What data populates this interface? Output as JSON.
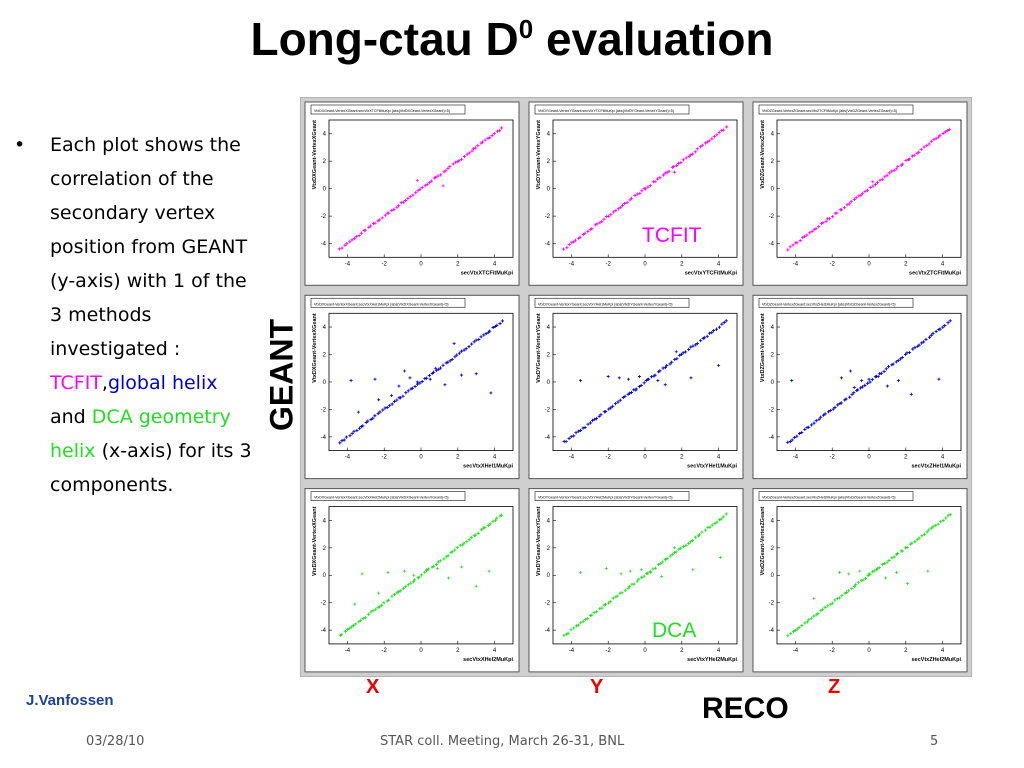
{
  "title": {
    "main": "Long-ctau D",
    "sup": "0",
    "rest": " evaluation"
  },
  "bullet": {
    "intro": "Each plot shows the correlation of the secondary vertex position from GEANT (y-axis) with 1 of the 3 methods investigated : ",
    "m1": "TCFIT",
    "comma": ",",
    "m2": "global helix",
    "and": " and ",
    "m3": "DCA geometry helix",
    "tail": " (x-axis) for its 3 components."
  },
  "labels": {
    "geant": "GEANT",
    "reco": "RECO",
    "x": "X",
    "y": "Y",
    "z": "Z",
    "tcfit_tag": "TCFIT",
    "dca_tag": "DCA"
  },
  "footer": {
    "author": "J.Vanfossen",
    "date": "03/28/10",
    "meeting": "STAR coll. Meeting, March 26-31, BNL",
    "page": "5"
  },
  "colors": {
    "tcfit": "#ff00ff",
    "global": "#0000cc",
    "dca": "#22dd22",
    "reco_axis": "#ee0000"
  },
  "chart_data": [
    {
      "type": "scatter",
      "title": "VtxDXGeant-VertexXGeant:secVtxXTCFitMuKpi {abs(VtxDXGeant-VertexXGeant)<5}",
      "xlabel": "secVtxXTCFitMuKpi",
      "ylabel": "VtxDXGeant-VertexXGeant",
      "xlim": [
        -5,
        5
      ],
      "ylim": [
        -5,
        5
      ],
      "xticks": [
        -4,
        -2,
        0,
        2,
        4
      ],
      "yticks": [
        -4,
        -2,
        0,
        2,
        4
      ],
      "color": "#ff00ff",
      "outliers": [
        [
          -0.2,
          0.6
        ],
        [
          1.2,
          0.2
        ]
      ]
    },
    {
      "type": "scatter",
      "title": "VtxDYGeant-VertexYGeant:secVtxYTCFitMuKpi {abs(VtxDYGeant-VertexYGeant)<5}",
      "xlabel": "secVtxYTCFitMuKpi",
      "ylabel": "VtxDYGeant-VertexYGeant",
      "xlim": [
        -5,
        5
      ],
      "ylim": [
        -5,
        5
      ],
      "xticks": [
        -4,
        -2,
        0,
        2,
        4
      ],
      "yticks": [
        -4,
        -2,
        0,
        2,
        4
      ],
      "color": "#ff00ff",
      "outliers": [
        [
          1.6,
          1.2
        ]
      ]
    },
    {
      "type": "scatter",
      "title": "VtxDZGeant-VertexZGeant:secVtxZTCFitMuKpi {abs(VtxDZGeant-VertexZGeant)<5}",
      "xlabel": "secVtxZTCFitMuKpi",
      "ylabel": "VtxDZGeant-VertexZGeant",
      "xlim": [
        -5,
        5
      ],
      "ylim": [
        -5,
        5
      ],
      "xticks": [
        -4,
        -2,
        0,
        2,
        4
      ],
      "yticks": [
        -4,
        -2,
        0,
        2,
        4
      ],
      "color": "#ff00ff",
      "outliers": [
        [
          0.2,
          0.5
        ]
      ]
    },
    {
      "type": "scatter",
      "title": "VtxDXGeant-VertexXGeant:secVtxXHel1MuKpi {abs(VtxDXGeant-VertexXGeant)<5}",
      "xlabel": "secVtxXHel1MuKpi",
      "ylabel": "VtxDXGeant-VertexXGeant",
      "xlim": [
        -5,
        5
      ],
      "ylim": [
        -5,
        5
      ],
      "xticks": [
        -4,
        -2,
        0,
        2,
        4
      ],
      "yticks": [
        -4,
        -2,
        0,
        2,
        4
      ],
      "color": "#0000cc",
      "outliers": [
        [
          -3.8,
          0.1
        ],
        [
          -3.4,
          -2.2
        ],
        [
          -2.5,
          0.2
        ],
        [
          -2.3,
          -1.3
        ],
        [
          -1.6,
          -1.0
        ],
        [
          -1.2,
          -0.3
        ],
        [
          -0.6,
          0.3
        ],
        [
          -0.2,
          0.0
        ],
        [
          0.5,
          0.2
        ],
        [
          0.8,
          1.0
        ],
        [
          1.3,
          -0.2
        ],
        [
          2.2,
          0.5
        ],
        [
          3.0,
          0.6
        ],
        [
          3.8,
          -0.8
        ],
        [
          1.8,
          2.8
        ],
        [
          -0.9,
          0.8
        ]
      ]
    },
    {
      "type": "scatter",
      "title": "VtxDYGeant-VertexYGeant:secVtxYHel1MuKpi {abs(VtxDYGeant-VertexYGeant)<5}",
      "xlabel": "secVtxYHel1MuKpi",
      "ylabel": "VtxDYGeant-VertexYGeant",
      "xlim": [
        -5,
        5
      ],
      "ylim": [
        -5,
        5
      ],
      "xticks": [
        -4,
        -2,
        0,
        2,
        4
      ],
      "yticks": [
        -4,
        -2,
        0,
        2,
        4
      ],
      "color": "#0000cc",
      "outliers": [
        [
          -3.5,
          0.1
        ],
        [
          -2.0,
          0.4
        ],
        [
          -1.4,
          0.3
        ],
        [
          -0.9,
          0.2
        ],
        [
          -0.3,
          0.4
        ],
        [
          0.2,
          0.2
        ],
        [
          0.7,
          0.1
        ],
        [
          1.1,
          -0.2
        ],
        [
          1.7,
          2.2
        ],
        [
          2.5,
          0.3
        ],
        [
          4.0,
          1.2
        ],
        [
          -0.5,
          -0.6
        ]
      ]
    },
    {
      "type": "scatter",
      "title": "VtxDZGeant-VertexZGeant:secVtxZHel1MuKpi {abs(VtxDZGeant-VertexZGeant)<5}",
      "xlabel": "secVtxZHel1MuKpi",
      "ylabel": "VtxDZGeant-VertexZGeant",
      "xlim": [
        -5,
        5
      ],
      "ylim": [
        -5,
        5
      ],
      "xticks": [
        -4,
        -2,
        0,
        2,
        4
      ],
      "yticks": [
        -4,
        -2,
        0,
        2,
        4
      ],
      "color": "#0000cc",
      "outliers": [
        [
          -4.2,
          0.1
        ],
        [
          -1.5,
          0.3
        ],
        [
          -1.0,
          0.8
        ],
        [
          -0.4,
          0.1
        ],
        [
          0.0,
          0.2
        ],
        [
          0.5,
          0.4
        ],
        [
          1.0,
          -0.3
        ],
        [
          1.6,
          0.1
        ],
        [
          2.3,
          -0.9
        ],
        [
          3.8,
          0.2
        ],
        [
          -0.8,
          -0.4
        ]
      ]
    },
    {
      "type": "scatter",
      "title": "VtxDXGeant-VertexXGeant:secVtxXHel2MuKpi {abs(VtxDXGeant-VertexXGeant)<5}",
      "xlabel": "secVtxXHel2MuKpi",
      "ylabel": "VtxDXGeant-VertexXGeant",
      "xlim": [
        -5,
        5
      ],
      "ylim": [
        -5,
        5
      ],
      "xticks": [
        -4,
        -2,
        0,
        2,
        4
      ],
      "yticks": [
        -4,
        -2,
        0,
        2,
        4
      ],
      "color": "#22dd22",
      "outliers": [
        [
          -3.6,
          -2.1
        ],
        [
          -3.2,
          0.1
        ],
        [
          -2.3,
          -1.3
        ],
        [
          -1.8,
          0.2
        ],
        [
          -0.9,
          0.3
        ],
        [
          -0.4,
          0.0
        ],
        [
          0.3,
          0.4
        ],
        [
          0.9,
          0.5
        ],
        [
          1.5,
          -0.2
        ],
        [
          2.2,
          0.6
        ],
        [
          3.0,
          -0.8
        ],
        [
          3.7,
          0.3
        ]
      ]
    },
    {
      "type": "scatter",
      "title": "VtxDYGeant-VertexYGeant:secVtxYHel2MuKpi {abs(VtxDYGeant-VertexYGeant)<5}",
      "xlabel": "secVtxYHel2MuKpi",
      "ylabel": "VtxDYGeant-VertexYGeant",
      "xlim": [
        -5,
        5
      ],
      "ylim": [
        -5,
        5
      ],
      "xticks": [
        -4,
        -2,
        0,
        2,
        4
      ],
      "yticks": [
        -4,
        -2,
        0,
        2,
        4
      ],
      "color": "#22dd22",
      "outliers": [
        [
          -3.5,
          0.2
        ],
        [
          -2.1,
          0.5
        ],
        [
          -1.3,
          0.1
        ],
        [
          -0.8,
          0.3
        ],
        [
          -0.2,
          0.4
        ],
        [
          0.3,
          0.2
        ],
        [
          0.9,
          -0.1
        ],
        [
          1.6,
          2.0
        ],
        [
          2.6,
          0.4
        ],
        [
          4.1,
          1.3
        ]
      ]
    },
    {
      "type": "scatter",
      "title": "VtxDZGeant-VertexZGeant:secVtxZHel2MuKpi {abs(VtxDZGeant-VertexZGeant)<5}",
      "xlabel": "secVtxZHel2MuKpi",
      "ylabel": "VtxDZGeant-VertexZGeant",
      "xlim": [
        -5,
        5
      ],
      "ylim": [
        -5,
        5
      ],
      "xticks": [
        -4,
        -2,
        0,
        2,
        4
      ],
      "yticks": [
        -4,
        -2,
        0,
        2,
        4
      ],
      "color": "#22dd22",
      "outliers": [
        [
          -3.0,
          -1.7
        ],
        [
          -1.6,
          0.2
        ],
        [
          -1.1,
          0.1
        ],
        [
          -0.5,
          0.3
        ],
        [
          0.0,
          0.1
        ],
        [
          0.4,
          0.4
        ],
        [
          0.9,
          -0.2
        ],
        [
          1.5,
          0.2
        ],
        [
          2.1,
          -0.6
        ],
        [
          3.2,
          0.3
        ]
      ]
    }
  ]
}
